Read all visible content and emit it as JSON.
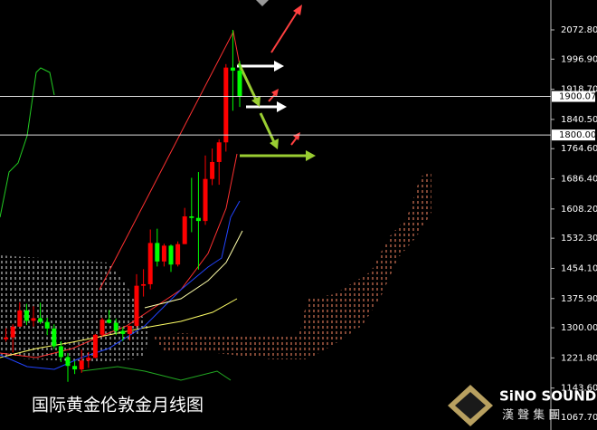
{
  "chart_data": {
    "type": "candlestick",
    "title": "国际黄金伦敦金月线图",
    "brand": "SiNO SOUND",
    "brand_sub": "漢 聲 集 團",
    "open": [
      1270,
      1275,
      1303,
      1345,
      1318,
      1325,
      1315,
      1298,
      1252,
      1224,
      1201,
      1192,
      1215,
      1222,
      1282,
      1321,
      1313,
      1292,
      1284,
      1305,
      1409,
      1413,
      1520,
      1472,
      1513,
      1464,
      1517,
      1589,
      1585,
      1577,
      1686,
      1730,
      1781,
      1975,
      1967
    ],
    "high": [
      1299,
      1309,
      1366,
      1362,
      1356,
      1365,
      1326,
      1309,
      1265,
      1234,
      1214,
      1243,
      1237,
      1284,
      1326,
      1346,
      1324,
      1302,
      1306,
      1439,
      1452,
      1555,
      1557,
      1518,
      1516,
      1524,
      1611,
      1689,
      1704,
      1747,
      1765,
      1789,
      1984,
      2072.8,
      1992
    ],
    "low": [
      1264,
      1236,
      1302,
      1307,
      1303,
      1310,
      1281,
      1245,
      1211,
      1160,
      1180,
      1183,
      1196,
      1221,
      1276,
      1311,
      1281,
      1266,
      1267,
      1300,
      1381,
      1400,
      1459,
      1459,
      1445,
      1459,
      1517,
      1548,
      1451,
      1567,
      1670,
      1671,
      1757,
      1863,
      1873
    ],
    "close": [
      1275,
      1303,
      1345,
      1318,
      1325,
      1315,
      1298,
      1252,
      1224,
      1201,
      1192,
      1215,
      1222,
      1282,
      1321,
      1313,
      1292,
      1284,
      1305,
      1409,
      1413,
      1520,
      1472,
      1513,
      1464,
      1517,
      1589,
      1585,
      1577,
      1686,
      1730,
      1781,
      1975,
      1967,
      1900.07
    ],
    "up_color": "#ff0000",
    "down_color": "#00ff00",
    "ylim": [
      1034.8,
      2150.3
    ],
    "yticks": [
      {
        "value": 2072.8,
        "label": "2072.80"
      },
      {
        "value": 1996.9,
        "label": "1996.90"
      },
      {
        "value": 1918.7,
        "label": "1918.70"
      },
      {
        "value": 1840.5,
        "label": "1840.50"
      },
      {
        "value": 1764.6,
        "label": "1764.60"
      },
      {
        "value": 1686.4,
        "label": "1686.40"
      },
      {
        "value": 1608.2,
        "label": "1608.20"
      },
      {
        "value": 1532.3,
        "label": "1532.30"
      },
      {
        "value": 1454.1,
        "label": "1454.10"
      },
      {
        "value": 1375.9,
        "label": "1375.90"
      },
      {
        "value": 1300,
        "label": "1300.00"
      },
      {
        "value": 1221.8,
        "label": "1221.80"
      },
      {
        "value": 1143.6,
        "label": "1143.60"
      },
      {
        "value": 1067.7,
        "label": "1067.70"
      }
    ],
    "price_lines": [
      1900.07,
      {
        "value": 1800,
        "label": "1800.00"
      }
    ]
  }
}
